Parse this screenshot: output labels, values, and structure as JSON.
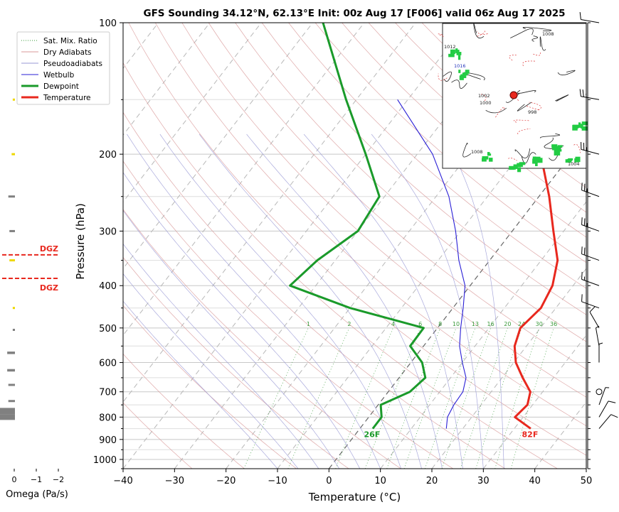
{
  "chart_data": {
    "type": "line",
    "title": "GFS Sounding 34.12°N, 62.13°E Init: 00z Aug 17 [F006] valid 06z Aug 17 2025",
    "xlabel": "Temperature (°C)",
    "ylabel": "Pressure (hPa)",
    "xlim": [
      -40,
      50
    ],
    "ylim": [
      1050,
      100
    ],
    "y_scale": "log",
    "x_ticks": [
      "−40",
      "−30",
      "−20",
      "−10",
      "0",
      "10",
      "20",
      "30",
      "40",
      "50"
    ],
    "y_ticks": [
      100,
      200,
      300,
      400,
      500,
      600,
      700,
      800,
      900,
      1000
    ],
    "skew_note": "skew-T: isotherms slant to the right",
    "grid": true,
    "legend": [
      "Sat. Mix. Ratio",
      "Dry Adiabats",
      "Pseudoadiabats",
      "Wetbulb",
      "Dewpoint",
      "Temperature"
    ],
    "legend_placement": "top-left",
    "mixing_ratio_labels": [
      "1",
      "2",
      "4",
      "6",
      "8",
      "10",
      "13",
      "16",
      "20",
      "24",
      "30",
      "36"
    ],
    "series": [
      {
        "name": "Temperature",
        "color": "#e8281e",
        "points": [
          [
            33.2,
            850
          ],
          [
            28.4,
            800
          ],
          [
            29,
            750
          ],
          [
            27.6,
            700
          ],
          [
            24,
            650
          ],
          [
            20.4,
            600
          ],
          [
            17.7,
            550
          ],
          [
            16.1,
            500
          ],
          [
            17.1,
            450
          ],
          [
            16,
            400
          ],
          [
            13.2,
            350
          ],
          [
            8,
            300
          ],
          [
            2,
            250
          ],
          [
            -6,
            200
          ],
          [
            -17,
            150
          ],
          [
            -31,
            100
          ]
        ]
      },
      {
        "name": "Dewpoint",
        "color": "#1a9a2a",
        "points": [
          [
            2.5,
            850
          ],
          [
            2.5,
            800
          ],
          [
            0.5,
            750
          ],
          [
            4.2,
            700
          ],
          [
            5.1,
            650
          ],
          [
            2.2,
            600
          ],
          [
            -2.6,
            550
          ],
          [
            -2.7,
            500
          ],
          [
            -20,
            450
          ],
          [
            -35,
            400
          ],
          [
            -33.5,
            350
          ],
          [
            -30,
            300
          ],
          [
            -31,
            250
          ],
          [
            -40,
            200
          ],
          [
            -52,
            150
          ],
          [
            -68,
            100
          ]
        ]
      },
      {
        "name": "Wetbulb",
        "color": "#2a1fd6",
        "points": [
          [
            16.8,
            850
          ],
          [
            15.3,
            800
          ],
          [
            14.7,
            750
          ],
          [
            14.5,
            700
          ],
          [
            13,
            650
          ],
          [
            10,
            600
          ],
          [
            7,
            550
          ],
          [
            4.5,
            500
          ],
          [
            2,
            450
          ],
          [
            -1,
            400
          ],
          [
            -6,
            350
          ],
          [
            -11,
            300
          ],
          [
            -17.5,
            250
          ],
          [
            -27,
            200
          ],
          [
            -42,
            150
          ]
        ]
      }
    ],
    "surface_labels": {
      "dewpoint": "26F",
      "temperature": "82F"
    },
    "dgz_label": "DGZ",
    "dgz_levels_hpa": [
      340,
      385
    ],
    "omega": {
      "xlabel": "Omega (Pa/s)",
      "x_ticks": [
        "0",
        "−1",
        "−2"
      ],
      "bars": [
        {
          "p": 800,
          "v": 0.8,
          "color": "#808080"
        },
        {
          "p": 775,
          "v": 0.9,
          "color": "#808080"
        },
        {
          "p": 735,
          "v": 0.3,
          "color": "#808080"
        },
        {
          "p": 675,
          "v": 0.3,
          "color": "#808080"
        },
        {
          "p": 625,
          "v": 0.35,
          "color": "#808080"
        },
        {
          "p": 570,
          "v": 0.35,
          "color": "#808080"
        },
        {
          "p": 505,
          "v": 0.1,
          "color": "#808080"
        },
        {
          "p": 450,
          "v": 0.1,
          "color": "#eed800"
        },
        {
          "p": 350,
          "v": 0.25,
          "color": "#eed800"
        },
        {
          "p": 300,
          "v": 0.25,
          "color": "#808080"
        },
        {
          "p": 250,
          "v": 0.3,
          "color": "#808080"
        },
        {
          "p": 200,
          "v": 0.15,
          "color": "#eed800"
        },
        {
          "p": 150,
          "v": 0.1,
          "color": "#eed800"
        }
      ]
    },
    "wind_barbs": [
      {
        "p": 100,
        "speed": 10,
        "dir": 280
      },
      {
        "p": 150,
        "speed": 25,
        "dir": 280
      },
      {
        "p": 200,
        "speed": 25,
        "dir": 285
      },
      {
        "p": 250,
        "speed": 25,
        "dir": 290
      },
      {
        "p": 300,
        "speed": 25,
        "dir": 290
      },
      {
        "p": 350,
        "speed": 20,
        "dir": 290
      },
      {
        "p": 400,
        "speed": 15,
        "dir": 290
      },
      {
        "p": 450,
        "speed": 10,
        "dir": 290
      },
      {
        "p": 500,
        "speed": 10,
        "dir": 330
      },
      {
        "p": 550,
        "speed": 5,
        "dir": 350
      },
      {
        "p": 600,
        "speed": 5,
        "dir": 0
      },
      {
        "p": 700,
        "speed": 0,
        "dir": 0
      },
      {
        "p": 750,
        "speed": 5,
        "dir": 20
      },
      {
        "p": 800,
        "speed": 10,
        "dir": 30
      },
      {
        "p": 850,
        "speed": 10,
        "dir": 40
      }
    ],
    "inset_map": {
      "isobar_labels": [
        "1008",
        "1012",
        "1016",
        "1002",
        "1000",
        "998",
        "1008",
        "1004"
      ],
      "station_marker": true
    }
  }
}
